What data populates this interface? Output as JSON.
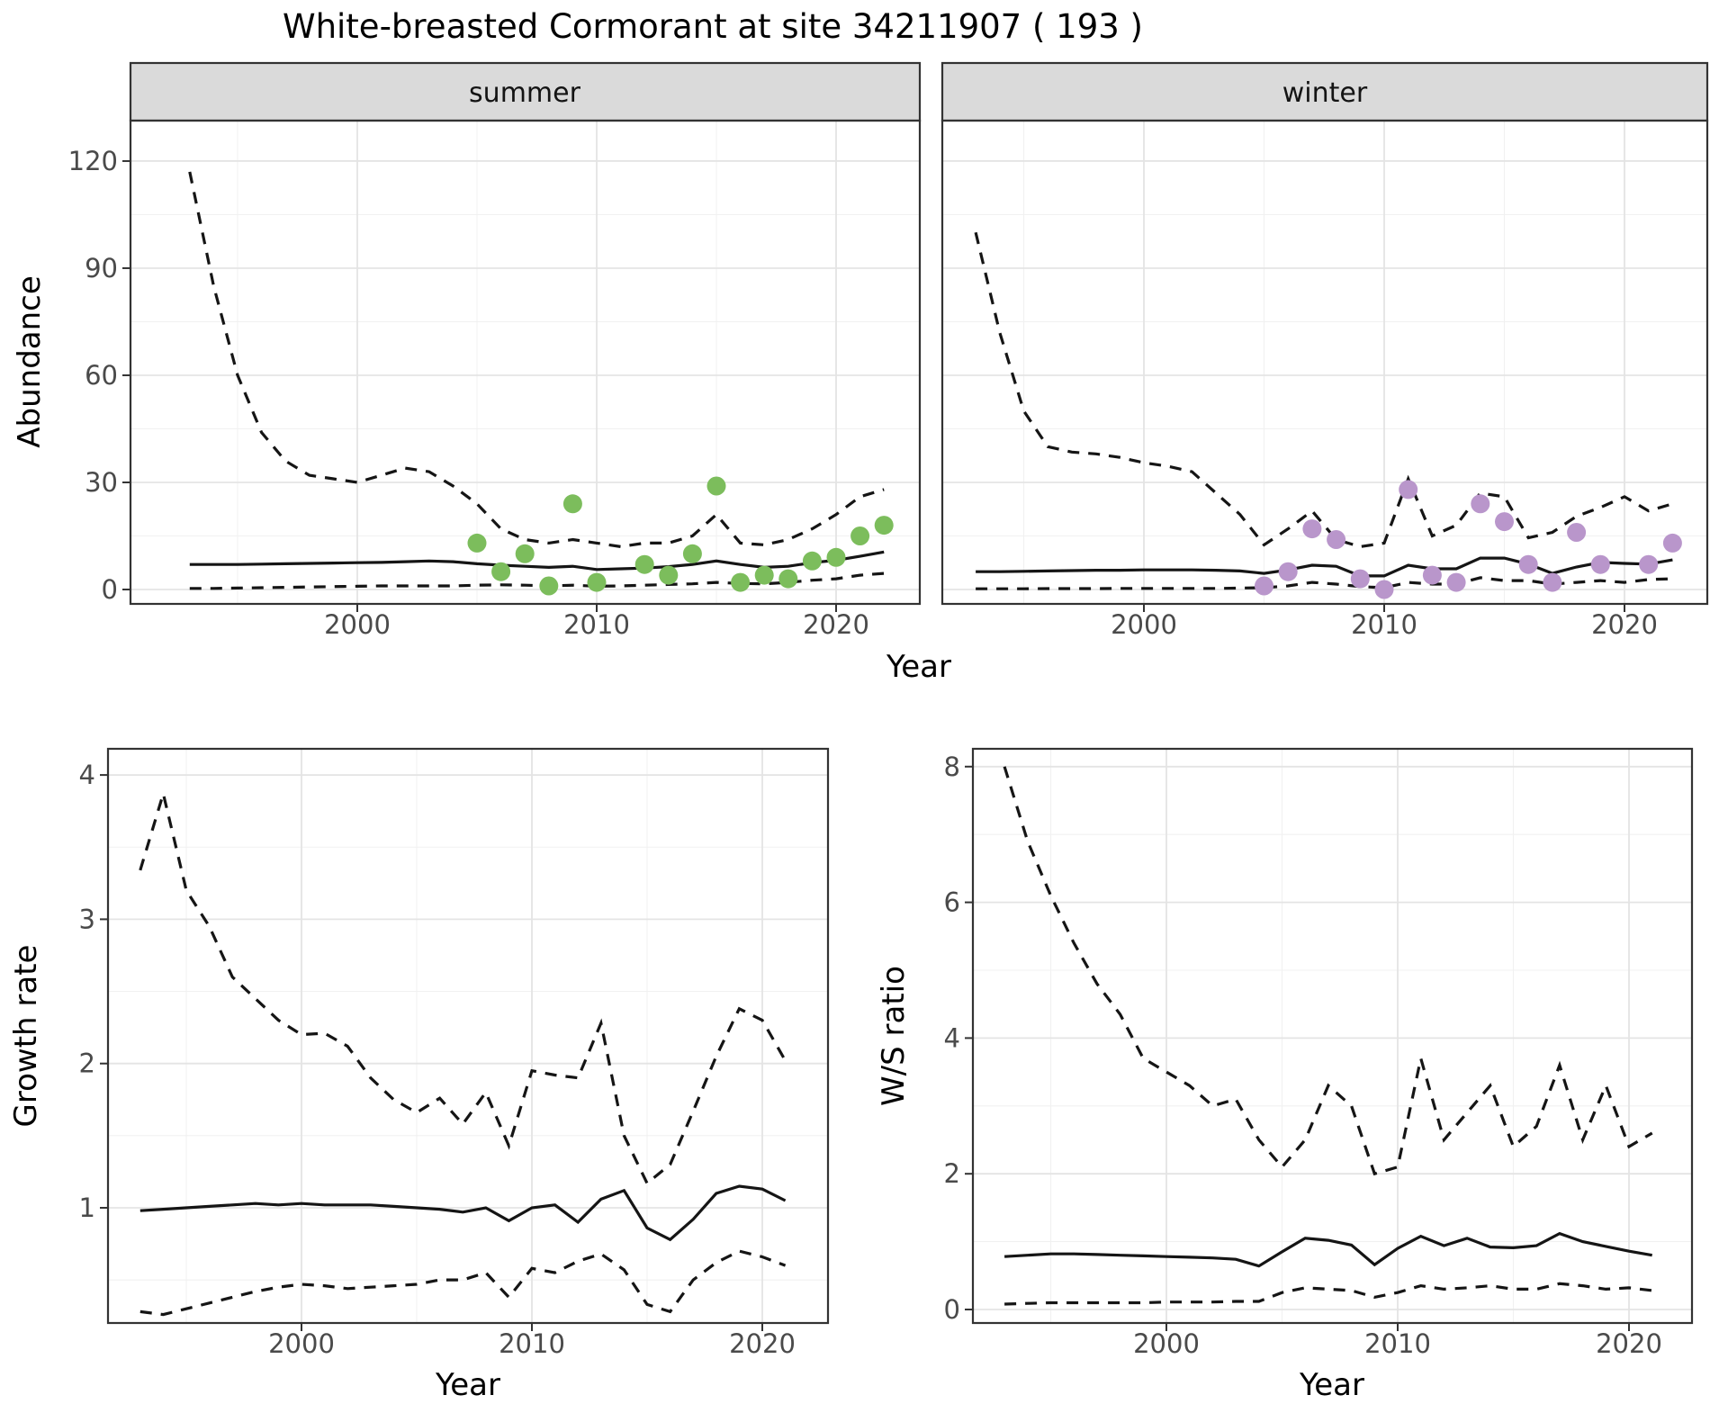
{
  "title": "White-breasted Cormorant at site 34211907 ( 193 )",
  "colors": {
    "observed_summer": "#7CBD5C",
    "observed_winter": "#B996CB",
    "line": "#151515",
    "strip_bg": "#DADADA",
    "panel_border": "#333333",
    "grid_major": "#E4E4E4",
    "grid_minor": "#F1F1F1",
    "tick_text": "#4a4a4a"
  },
  "chart_data": [
    {
      "id": "abundance_summer",
      "type": "line",
      "facet": "summer",
      "ylabel": "Abundance",
      "xlabel": "Year",
      "x_ticks": [
        2000,
        2010,
        2020
      ],
      "x_minor": [
        1995,
        2005,
        2015
      ],
      "y_ticks": [
        0,
        30,
        60,
        90,
        120
      ],
      "y_minor": [
        15,
        45,
        75,
        105
      ],
      "xlim": [
        1990.5,
        2023.5
      ],
      "ylim": [
        -3,
        131
      ],
      "grid": true,
      "legend": "none",
      "x": [
        1993,
        1994,
        1995,
        1996,
        1997,
        1998,
        1999,
        2000,
        2001,
        2002,
        2003,
        2004,
        2005,
        2006,
        2007,
        2008,
        2009,
        2010,
        2011,
        2012,
        2013,
        2014,
        2015,
        2016,
        2017,
        2018,
        2019,
        2020,
        2021,
        2022
      ],
      "series": {
        "upper_ci": {
          "style": "dashed",
          "values": [
            117,
            85,
            60,
            44,
            36,
            32,
            31,
            30,
            32,
            34,
            33,
            29,
            24,
            17,
            14,
            13,
            14,
            13,
            12,
            13,
            13,
            15,
            21,
            13,
            12.5,
            14,
            17,
            21,
            26,
            28
          ]
        },
        "median": {
          "style": "solid",
          "values": [
            7,
            7,
            7,
            7.1,
            7.2,
            7.3,
            7.4,
            7.5,
            7.6,
            7.8,
            8,
            7.8,
            7.2,
            6.8,
            6.5,
            6.2,
            6.5,
            5.6,
            5.8,
            6,
            6.4,
            7,
            8,
            7,
            6.2,
            6.5,
            7.5,
            8.2,
            9.3,
            10.5
          ]
        },
        "lower_ci": {
          "style": "dashed",
          "values": [
            0.3,
            0.3,
            0.4,
            0.5,
            0.6,
            0.7,
            0.8,
            0.9,
            1,
            1,
            1,
            1,
            1.2,
            1.3,
            1.2,
            1,
            1.2,
            0.9,
            1,
            1.2,
            1.4,
            1.6,
            2,
            1.7,
            1.6,
            2,
            2.6,
            3,
            4,
            4.5
          ]
        },
        "observations": {
          "style": "points",
          "color_key": "observed_summer",
          "x": [
            2005,
            2006,
            2007,
            2008,
            2009,
            2010,
            2012,
            2013,
            2014,
            2015,
            2016,
            2017,
            2018,
            2019,
            2020,
            2021,
            2022
          ],
          "y": [
            13,
            5,
            10,
            1,
            24,
            2,
            7,
            4,
            10,
            29,
            2,
            4,
            3,
            8,
            9,
            15,
            18
          ]
        }
      }
    },
    {
      "id": "abundance_winter",
      "type": "line",
      "facet": "winter",
      "ylabel": "Abundance",
      "xlabel": "Year",
      "x_ticks": [
        2000,
        2010,
        2020
      ],
      "x_minor": [
        1995,
        2005,
        2015
      ],
      "y_ticks": [
        0,
        30,
        60,
        90,
        120
      ],
      "y_minor": [
        15,
        45,
        75,
        105
      ],
      "xlim": [
        1990.5,
        2023.5
      ],
      "ylim": [
        -3,
        131
      ],
      "grid": true,
      "legend": "none",
      "x": [
        1993,
        1994,
        1995,
        1996,
        1997,
        1998,
        1999,
        2000,
        2001,
        2002,
        2003,
        2004,
        2005,
        2006,
        2007,
        2008,
        2009,
        2010,
        2011,
        2012,
        2013,
        2014,
        2015,
        2016,
        2017,
        2018,
        2019,
        2020,
        2021,
        2022
      ],
      "series": {
        "upper_ci": {
          "style": "dashed",
          "values": [
            100,
            72,
            50,
            40,
            38.5,
            38,
            37,
            35.5,
            34.5,
            33,
            27,
            21,
            12.5,
            17,
            22,
            14,
            12,
            13,
            31,
            15,
            18,
            27,
            26,
            14.5,
            16,
            20.5,
            23,
            26,
            22,
            24
          ]
        },
        "median": {
          "style": "solid",
          "values": [
            5,
            5,
            5.1,
            5.2,
            5.3,
            5.4,
            5.4,
            5.5,
            5.5,
            5.5,
            5.4,
            5.2,
            4.5,
            5.5,
            6.8,
            6.5,
            3.8,
            3.8,
            6.8,
            5.8,
            5.8,
            8.8,
            8.8,
            7.1,
            4.5,
            6.3,
            7.6,
            7.3,
            7.1,
            8.3
          ]
        },
        "lower_ci": {
          "style": "dashed",
          "values": [
            0.2,
            0.2,
            0.2,
            0.25,
            0.25,
            0.25,
            0.3,
            0.3,
            0.3,
            0.3,
            0.3,
            0.4,
            0.5,
            1,
            2,
            1.5,
            0.8,
            0.5,
            2,
            1.5,
            1.5,
            3.3,
            2.5,
            2.5,
            1.5,
            2,
            2.5,
            2,
            2.8,
            3
          ]
        },
        "observations": {
          "style": "points",
          "color_key": "observed_winter",
          "x": [
            2005,
            2006,
            2007,
            2008,
            2009,
            2010,
            2011,
            2012,
            2013,
            2014,
            2015,
            2016,
            2017,
            2018,
            2019,
            2021,
            2022
          ],
          "y": [
            1,
            5,
            17,
            14,
            3,
            0,
            28,
            4,
            2,
            24,
            19,
            7,
            2,
            16,
            7,
            7,
            13
          ]
        }
      }
    },
    {
      "id": "growth_rate",
      "type": "line",
      "facet": null,
      "ylabel": "Growth rate",
      "xlabel": "Year",
      "x_ticks": [
        2000,
        2010,
        2020
      ],
      "x_minor": [
        1995,
        2005,
        2015
      ],
      "y_ticks": [
        1,
        2,
        3,
        4
      ],
      "y_minor": [
        0.5,
        1.5,
        2.5,
        3.5
      ],
      "xlim": [
        1991.6,
        2023.2
      ],
      "ylim": [
        0.18,
        4.18
      ],
      "grid": true,
      "legend": "none",
      "x": [
        1993,
        1994,
        1995,
        1996,
        1997,
        1998,
        1999,
        2000,
        2001,
        2002,
        2003,
        2004,
        2005,
        2006,
        2007,
        2008,
        2009,
        2010,
        2011,
        2012,
        2013,
        2014,
        2015,
        2016,
        2017,
        2018,
        2019,
        2020,
        2021
      ],
      "series": {
        "upper_ci": {
          "style": "dashed",
          "values": [
            3.34,
            3.87,
            3.2,
            2.95,
            2.6,
            2.45,
            2.3,
            2.2,
            2.21,
            2.12,
            1.9,
            1.75,
            1.66,
            1.76,
            1.58,
            1.8,
            1.43,
            1.95,
            1.92,
            1.9,
            2.28,
            1.5,
            1.17,
            1.3,
            1.67,
            2.05,
            2.38,
            2.3,
            2.02
          ]
        },
        "median": {
          "style": "solid",
          "values": [
            0.98,
            0.99,
            1,
            1.01,
            1.02,
            1.03,
            1.02,
            1.03,
            1.02,
            1.02,
            1.02,
            1.01,
            1,
            0.99,
            0.97,
            1,
            0.91,
            1,
            1.02,
            0.9,
            1.06,
            1.12,
            0.86,
            0.78,
            0.92,
            1.1,
            1.15,
            1.13,
            1.05
          ]
        },
        "lower_ci": {
          "style": "dashed",
          "values": [
            0.28,
            0.26,
            0.3,
            0.34,
            0.38,
            0.42,
            0.45,
            0.47,
            0.46,
            0.44,
            0.45,
            0.46,
            0.47,
            0.5,
            0.5,
            0.55,
            0.38,
            0.58,
            0.55,
            0.63,
            0.68,
            0.57,
            0.33,
            0.28,
            0.5,
            0.62,
            0.7,
            0.66,
            0.6
          ]
        }
      }
    },
    {
      "id": "ws_ratio",
      "type": "line",
      "facet": null,
      "ylabel": "W/S ratio",
      "xlabel": "Year",
      "x_ticks": [
        2000,
        2010,
        2020
      ],
      "x_minor": [
        1995,
        2005,
        2015
      ],
      "y_ticks": [
        0,
        2,
        4,
        6,
        8
      ],
      "y_minor": [
        1,
        3,
        5,
        7
      ],
      "xlim": [
        1991.6,
        2023.2
      ],
      "ylim": [
        -0.2,
        8.45
      ],
      "grid": true,
      "legend": "none",
      "x": [
        1993,
        1994,
        1995,
        1996,
        1997,
        1998,
        1999,
        2000,
        2001,
        2002,
        2003,
        2004,
        2005,
        2006,
        2007,
        2008,
        2009,
        2010,
        2011,
        2012,
        2013,
        2014,
        2015,
        2016,
        2017,
        2018,
        2019,
        2020,
        2021
      ],
      "series": {
        "upper_ci": {
          "style": "dashed",
          "values": [
            8,
            6.9,
            6.1,
            5.4,
            4.8,
            4.35,
            3.7,
            3.5,
            3.3,
            3,
            3.1,
            2.5,
            2.1,
            2.5,
            3.3,
            3,
            2,
            2.1,
            3.7,
            2.5,
            2.9,
            3.3,
            2.4,
            2.7,
            3.6,
            2.5,
            3.3,
            2.4,
            2.6
          ]
        },
        "median": {
          "style": "solid",
          "values": [
            0.78,
            0.8,
            0.82,
            0.82,
            0.81,
            0.8,
            0.79,
            0.78,
            0.77,
            0.76,
            0.74,
            0.64,
            0.85,
            1.05,
            1.02,
            0.95,
            0.66,
            0.9,
            1.08,
            0.94,
            1.05,
            0.92,
            0.91,
            0.94,
            1.12,
            1,
            0.93,
            0.86,
            0.8
          ]
        },
        "lower_ci": {
          "style": "dashed",
          "values": [
            0.08,
            0.09,
            0.1,
            0.1,
            0.1,
            0.1,
            0.1,
            0.11,
            0.11,
            0.11,
            0.12,
            0.12,
            0.25,
            0.32,
            0.3,
            0.28,
            0.18,
            0.25,
            0.35,
            0.3,
            0.32,
            0.35,
            0.3,
            0.3,
            0.38,
            0.35,
            0.3,
            0.32,
            0.28
          ]
        }
      }
    }
  ]
}
